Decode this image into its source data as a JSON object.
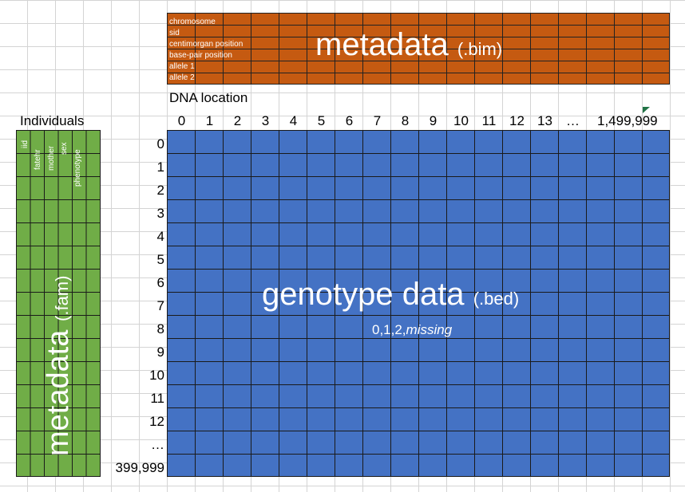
{
  "bim": {
    "fields": [
      "chromosome",
      "sid",
      "centimorgan position",
      "base-pair position",
      "allele 1",
      "allele 2"
    ],
    "title": "metadata",
    "ext": "(.bim)"
  },
  "dna_location_label": "DNA location",
  "individuals_label": "Individuals",
  "column_labels": [
    "0",
    "1",
    "2",
    "3",
    "4",
    "5",
    "6",
    "7",
    "8",
    "9",
    "10",
    "11",
    "12",
    "13",
    "…",
    "1,499,999"
  ],
  "row_labels": [
    "0",
    "1",
    "2",
    "3",
    "4",
    "5",
    "6",
    "7",
    "8",
    "9",
    "10",
    "11",
    "12",
    "…",
    "399,999"
  ],
  "fam": {
    "fields": [
      "iid",
      "fatehr",
      "mother",
      "sex",
      "phenotype"
    ],
    "title": "metadata",
    "ext": "(.fam)"
  },
  "bed": {
    "title": "genotype data",
    "ext": "(.bed)",
    "values_prefix": "0,1,2,",
    "values_missing": "missing"
  },
  "colors": {
    "bim": "#c55a11",
    "bed": "#4472c4",
    "fam": "#70ad47",
    "gridline": "#d4d4d4"
  }
}
